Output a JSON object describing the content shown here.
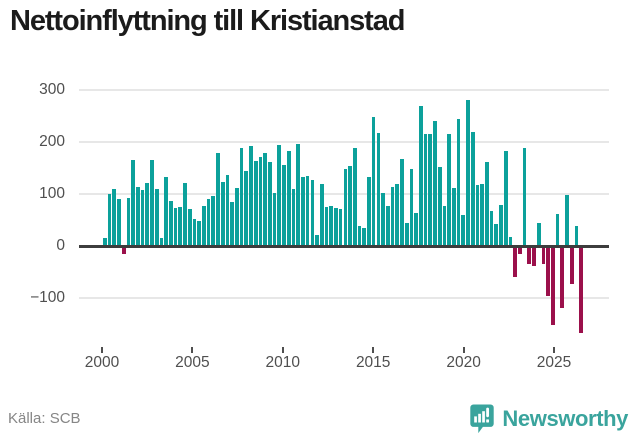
{
  "header": {
    "title": "Nettoinflyttning till Kristianstad"
  },
  "footer": {
    "source": "Källa: SCB",
    "brand": "Newsworthy"
  },
  "colors": {
    "positive": "#0ca19b",
    "negative": "#9b104b",
    "title": "#1b1b1b",
    "axis_label": "#4f4f4f",
    "gridline": "#e7e7e7",
    "zero_axis": "#3d3d3d",
    "source_text": "#868686",
    "brand": "#3aa49d"
  },
  "chart_data": {
    "type": "bar",
    "title": "Nettoinflyttning till Kristianstad",
    "source": "Källa: SCB",
    "x_unit": "quarter",
    "x_first": "2000 Q1",
    "x_last": "2025 Q2",
    "x_tick_labels": [
      "2000",
      "2005",
      "2010",
      "2015",
      "2020",
      "2025"
    ],
    "y_ticks": [
      300,
      200,
      100,
      0,
      -100
    ],
    "y_tick_labels": [
      "300",
      "200",
      "100",
      "0",
      "−100"
    ],
    "ylim": [
      -180,
      310
    ],
    "grid": true,
    "legend_position": "none",
    "series": [
      {
        "name": "Nettoinflyttning",
        "values": [
          15,
          100,
          110,
          90,
          -15,
          92,
          165,
          113,
          107,
          122,
          165,
          110,
          16,
          133,
          87,
          73,
          75,
          122,
          71,
          52,
          49,
          76,
          90,
          97,
          178,
          124,
          137,
          84,
          111,
          189,
          145,
          192,
          164,
          172,
          178,
          162,
          101,
          195,
          156,
          182,
          109,
          196,
          132,
          134,
          127,
          22,
          119,
          75,
          76,
          74,
          71,
          148,
          154,
          189,
          38,
          34,
          132,
          248,
          218,
          102,
          76,
          114,
          119,
          168,
          44,
          149,
          63,
          270,
          216,
          216,
          241,
          152,
          76,
          216,
          111,
          245,
          60,
          281,
          219,
          117,
          119,
          162,
          68,
          43,
          78,
          183,
          17,
          -60,
          -15,
          188,
          -34,
          -39,
          45,
          -35,
          -96,
          -152,
          62,
          -120,
          98,
          -73,
          38,
          -168
        ]
      }
    ]
  }
}
